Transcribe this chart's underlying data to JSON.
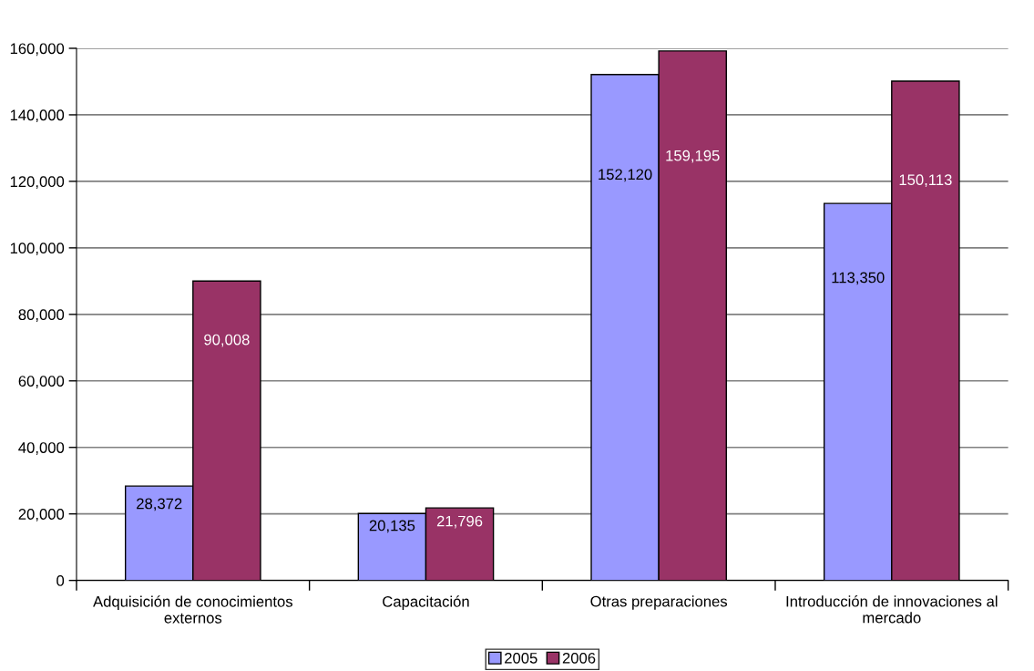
{
  "chart_data": {
    "type": "bar",
    "categories": [
      "Adquisición de conocimientos\nexternos",
      "Capacitación",
      "Otras preparaciones",
      "Introducción de innovaciones al\nmercado"
    ],
    "series": [
      {
        "name": "2005",
        "color": "#9999ff",
        "values": [
          28372,
          20135,
          152120,
          113350
        ],
        "value_labels": [
          "28,372",
          "20,135",
          "152,120",
          "113,350"
        ]
      },
      {
        "name": "2006",
        "color": "#993366",
        "values": [
          90008,
          21796,
          159195,
          150113
        ],
        "value_labels": [
          "90,008",
          "21,796",
          "159,195",
          "150,113"
        ]
      }
    ],
    "ylim": [
      0,
      160000
    ],
    "yticks": [
      0,
      {
        "value": 20000,
        "label": "20,000"
      },
      {
        "value": 40000,
        "label": "40,000"
      },
      {
        "value": 60000,
        "label": "60,000"
      },
      {
        "value": 80000,
        "label": "80,000"
      },
      {
        "value": 100000,
        "label": "100,000"
      },
      {
        "value": 120000,
        "label": "120,000"
      },
      {
        "value": 140000,
        "label": "140,000"
      },
      {
        "value": 160000,
        "label": "160,000"
      }
    ],
    "grid": "y",
    "legend": "bottom"
  }
}
